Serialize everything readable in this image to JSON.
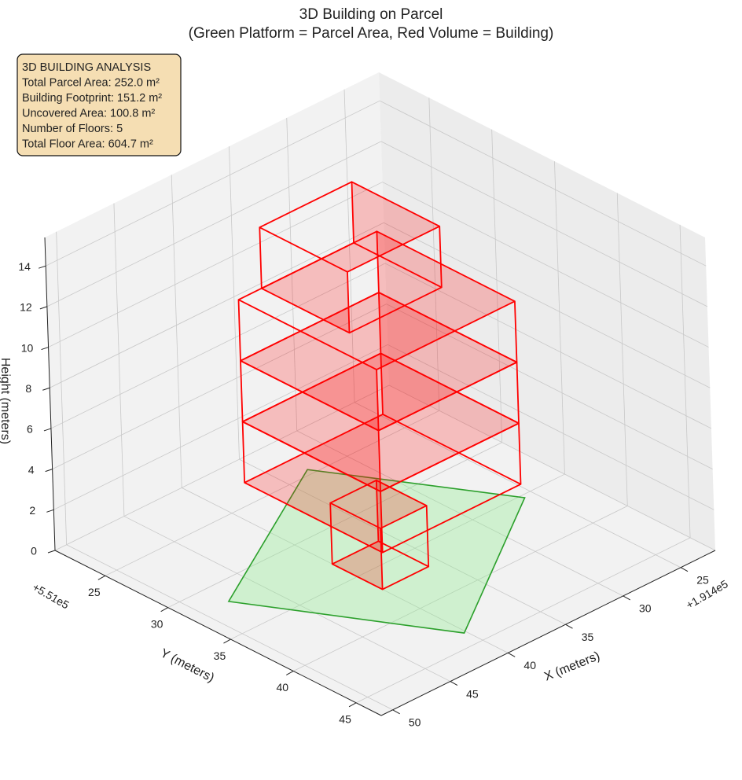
{
  "chart_data": {
    "type": "box3d",
    "title": "3D Building on Parcel",
    "subtitle": "(Green Platform = Parcel Area, Red Volume = Building)",
    "xlabel": "X (meters)",
    "ylabel": "Y (meters)",
    "zlabel": "Height (meters)",
    "x_offset_label": "+1.914e5",
    "y_offset_label": "+5.51e5",
    "xlim": [
      22,
      51
    ],
    "ylim": [
      21,
      47
    ],
    "zlim": [
      0,
      15.4
    ],
    "xticks": [
      25,
      30,
      35,
      40,
      45,
      50
    ],
    "yticks": [
      25,
      30,
      35,
      40,
      45
    ],
    "zticks": [
      0,
      2,
      4,
      6,
      8,
      10,
      12,
      14
    ],
    "grid": true,
    "annotation_lines": [
      "3D BUILDING ANALYSIS",
      "Total Parcel Area: 252.0 m²",
      "Building Footprint: 151.2 m²",
      "Uncovered Area: 100.8 m²",
      "Number of Floors: 5",
      "Total Floor Area: 604.7 m²"
    ],
    "parcel": {
      "color": "#90ee90",
      "edge_color": "#2ca02c",
      "points": [
        [
          47.8,
          31.9
        ],
        [
          32.9,
          24.5
        ],
        [
          25.8,
          35.3
        ],
        [
          40.2,
          43.7
        ]
      ]
    },
    "building": {
      "color": "#ff0000",
      "boxes": [
        {
          "x": [
            36,
            40
          ],
          "y": [
            33,
            37
          ],
          "z": [
            0,
            3
          ]
        },
        {
          "x": [
            30,
            42
          ],
          "y": [
            28,
            39
          ],
          "z": [
            3,
            6
          ]
        },
        {
          "x": [
            30,
            42
          ],
          "y": [
            28,
            39
          ],
          "z": [
            6,
            9
          ]
        },
        {
          "x": [
            30,
            42
          ],
          "y": [
            28,
            39
          ],
          "z": [
            9,
            12
          ]
        },
        {
          "x": [
            32,
            40
          ],
          "y": [
            28,
            35
          ],
          "z": [
            12,
            15
          ]
        }
      ]
    }
  }
}
